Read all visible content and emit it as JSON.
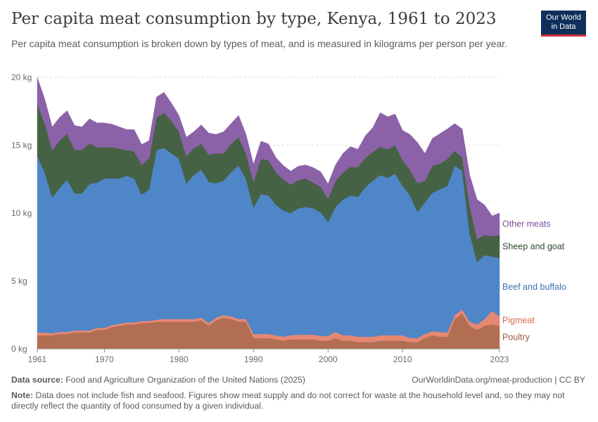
{
  "header": {
    "title": "Per capita meat consumption by type, Kenya, 1961 to 2023",
    "subtitle": "Per capita meat consumption is broken down by types of meat, and is measured in kilograms per person per year."
  },
  "logo": {
    "line1": "Our World",
    "line2": "in Data",
    "bg_color": "#0f2f5b",
    "accent_color": "#c7323b"
  },
  "footer": {
    "source_label": "Data source:",
    "source_text": "Food and Agriculture Organization of the United Nations (2025)",
    "url": "OurWorldinData.org/meat-production | CC BY",
    "note_label": "Note:",
    "note_text": "Data does not include fish and seafood. Figures show meat supply and do not correct for waste at the household level and, so they may not directly reflect the quantity of food consumed by a given individual."
  },
  "chart_data": {
    "type": "area",
    "stacked": true,
    "x_start": 1961,
    "x_end": 2023,
    "xlim": [
      1961,
      2023
    ],
    "ylim": [
      0,
      20
    ],
    "x_ticks": [
      1961,
      1970,
      1980,
      1990,
      2000,
      2010,
      2023
    ],
    "y_ticks": [
      0,
      5,
      10,
      15,
      20
    ],
    "y_tick_labels": [
      "0 kg",
      "5 kg",
      "10 kg",
      "15 kg",
      "20 kg"
    ],
    "grid": "horizontal dashed",
    "legend": "right, labels at end of series",
    "series": [
      {
        "name": "Poultry",
        "color": "#b16e52",
        "label_color": "#9a5a3c",
        "values": [
          1.0,
          1.0,
          1.0,
          1.1,
          1.1,
          1.2,
          1.2,
          1.2,
          1.4,
          1.4,
          1.6,
          1.7,
          1.8,
          1.8,
          1.9,
          1.9,
          2.0,
          2.0,
          2.0,
          2.0,
          2.0,
          2.0,
          2.1,
          1.7,
          2.1,
          2.3,
          2.2,
          2.0,
          2.0,
          0.8,
          0.8,
          0.8,
          0.7,
          0.6,
          0.7,
          0.7,
          0.7,
          0.7,
          0.6,
          0.6,
          0.8,
          0.6,
          0.6,
          0.5,
          0.5,
          0.5,
          0.6,
          0.6,
          0.6,
          0.6,
          0.5,
          0.5,
          0.8,
          1.0,
          0.9,
          0.9,
          2.2,
          2.6,
          1.7,
          1.4,
          1.7,
          1.8,
          1.7
        ]
      },
      {
        "name": "Pigmeat",
        "color": "#e58872",
        "label_color": "#d86d55",
        "values": [
          0.2,
          0.2,
          0.15,
          0.15,
          0.15,
          0.15,
          0.15,
          0.15,
          0.15,
          0.15,
          0.15,
          0.15,
          0.15,
          0.15,
          0.15,
          0.15,
          0.15,
          0.2,
          0.2,
          0.2,
          0.2,
          0.2,
          0.2,
          0.2,
          0.2,
          0.2,
          0.2,
          0.2,
          0.2,
          0.3,
          0.3,
          0.3,
          0.3,
          0.3,
          0.3,
          0.35,
          0.35,
          0.35,
          0.35,
          0.35,
          0.45,
          0.4,
          0.4,
          0.4,
          0.4,
          0.4,
          0.4,
          0.4,
          0.4,
          0.4,
          0.3,
          0.3,
          0.3,
          0.3,
          0.35,
          0.3,
          0.3,
          0.3,
          0.3,
          0.4,
          0.5,
          1.0,
          0.7
        ]
      },
      {
        "name": "Beef and buffalo",
        "color": "#4e86c8",
        "label_color": "#3e73b4",
        "values": [
          13.0,
          11.8,
          10.0,
          10.6,
          11.2,
          10.1,
          10.1,
          10.8,
          10.7,
          11.0,
          10.8,
          10.7,
          10.8,
          10.6,
          9.3,
          9.7,
          12.5,
          12.6,
          12.2,
          11.8,
          10.0,
          10.6,
          10.9,
          10.4,
          9.9,
          9.9,
          10.6,
          11.3,
          10.3,
          9.3,
          10.3,
          10.2,
          9.6,
          9.3,
          9.0,
          9.3,
          9.4,
          9.3,
          9.1,
          8.4,
          9.2,
          10.0,
          10.3,
          10.3,
          11.0,
          11.5,
          11.8,
          11.6,
          11.9,
          11.0,
          10.5,
          9.3,
          9.7,
          10.2,
          10.5,
          10.8,
          11.0,
          10.2,
          6.5,
          4.6,
          4.7,
          4.0,
          4.3
        ]
      },
      {
        "name": "Sheep and goat",
        "color": "#466245",
        "label_color": "#2f4a2f",
        "values": [
          3.8,
          3.6,
          3.5,
          3.5,
          3.4,
          3.2,
          3.2,
          3.0,
          2.6,
          2.3,
          2.3,
          2.2,
          1.9,
          2.0,
          2.2,
          2.3,
          2.4,
          2.6,
          2.4,
          2.0,
          2.0,
          2.0,
          1.9,
          2.0,
          2.2,
          2.0,
          2.1,
          2.1,
          1.9,
          1.9,
          2.6,
          2.6,
          2.4,
          2.3,
          2.1,
          2.1,
          2.1,
          1.9,
          1.9,
          1.7,
          1.9,
          2.0,
          2.1,
          2.2,
          2.2,
          2.1,
          2.1,
          2.1,
          2.1,
          1.9,
          1.9,
          2.1,
          1.6,
          2.0,
          1.9,
          2.0,
          1.1,
          1.0,
          2.0,
          1.7,
          1.5,
          1.5,
          1.7
        ]
      },
      {
        "name": "Other meats",
        "color": "#8b62a8",
        "label_color": "#7a4f98",
        "values": [
          2.0,
          1.8,
          1.7,
          1.7,
          1.7,
          1.8,
          1.7,
          1.8,
          1.8,
          1.8,
          1.7,
          1.6,
          1.5,
          1.6,
          1.5,
          1.3,
          1.5,
          1.5,
          1.3,
          1.2,
          1.4,
          1.2,
          1.4,
          1.6,
          1.4,
          1.6,
          1.5,
          1.6,
          1.4,
          1.3,
          1.3,
          1.2,
          1.1,
          1.0,
          1.0,
          1.0,
          1.0,
          1.1,
          1.1,
          1.1,
          1.2,
          1.4,
          1.5,
          1.3,
          1.6,
          1.8,
          2.5,
          2.4,
          2.3,
          2.2,
          2.6,
          3.0,
          2.0,
          2.0,
          2.2,
          2.2,
          2.0,
          2.1,
          2.3,
          2.9,
          2.2,
          1.5,
          1.6
        ]
      }
    ]
  }
}
